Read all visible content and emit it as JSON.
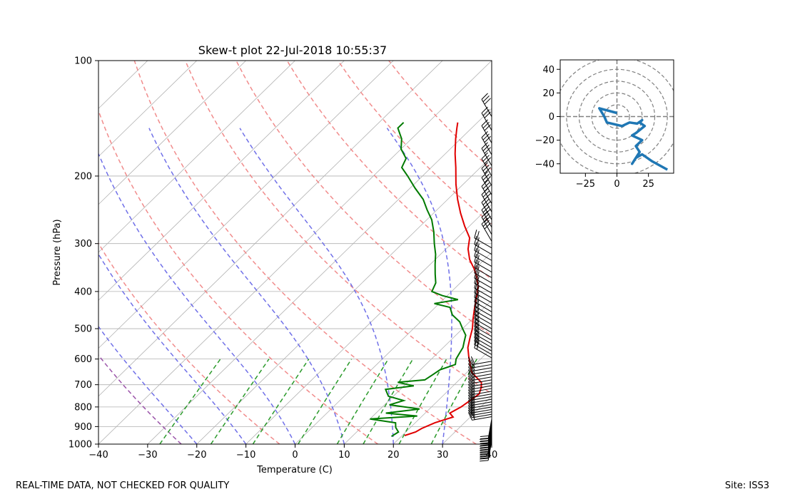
{
  "page": {
    "footer_left": "REAL-TIME DATA, NOT CHECKED FOR QUALITY",
    "footer_right": "Site: ISS3"
  },
  "chart_data": [
    {
      "type": "skew-t",
      "title": "Skew-t plot 22-Jul-2018 10:55:37",
      "xlabel": "Temperature (C)",
      "ylabel": "Pressure (hPa)",
      "xlim": [
        -40,
        40
      ],
      "ylim": [
        1000,
        100
      ],
      "y_scale": "log",
      "x_ticks": [
        -40,
        -30,
        -20,
        -10,
        0,
        10,
        20,
        30,
        40
      ],
      "x_tick_labels": [
        "−40",
        "−30",
        "−20",
        "−10",
        "0",
        "10",
        "20",
        "30",
        "40"
      ],
      "y_ticks": [
        100,
        200,
        300,
        400,
        500,
        600,
        700,
        800,
        900,
        1000
      ],
      "y_tick_labels": [
        "100",
        "200",
        "300",
        "400",
        "500",
        "600",
        "700",
        "800",
        "900",
        "1000"
      ],
      "grid": true,
      "isotherms_C": [
        -120,
        -110,
        -100,
        -90,
        -80,
        -70,
        -60,
        -50,
        -40,
        -30,
        -20,
        -10,
        0,
        10,
        20,
        30,
        40
      ],
      "dry_adiabats_theta_K": [
        230,
        250,
        270,
        290,
        310,
        330,
        350,
        370,
        390,
        410
      ],
      "moist_adiabats_start_C": [
        -20,
        -10,
        0,
        10,
        20,
        30,
        40
      ],
      "mixing_ratio_lines_g_kg": [
        0.4,
        1,
        2,
        4,
        7,
        10,
        16,
        24
      ],
      "special_dry_adiabat_theta_K": 250,
      "colors": {
        "temperature": "#e00000",
        "dewpoint": "#007a00",
        "dry_adiabat": "#f08080",
        "moist_adiabat": "#7070e8",
        "mixing_ratio": "#2a9a2a",
        "special": "#9040a0",
        "grid": "#b0b0b0"
      },
      "series": [
        {
          "name": "Temperature",
          "points": [
            [
              20.5,
              950
            ],
            [
              22,
              930
            ],
            [
              22.5,
              910
            ],
            [
              24,
              880
            ],
            [
              26.5,
              850
            ],
            [
              25,
              830
            ],
            [
              26,
              800
            ],
            [
              26.5,
              770
            ],
            [
              27,
              740
            ],
            [
              26,
              710
            ],
            [
              25,
              690
            ],
            [
              23,
              670
            ],
            [
              21,
              650
            ],
            [
              19,
              620
            ],
            [
              17,
              590
            ],
            [
              15,
              560
            ],
            [
              13.5,
              530
            ],
            [
              12,
              500
            ],
            [
              10,
              470
            ],
            [
              8,
              440
            ],
            [
              6,
              410
            ],
            [
              4.5,
              390
            ],
            [
              2.5,
              370
            ],
            [
              0,
              350
            ],
            [
              -3,
              330
            ],
            [
              -5.5,
              310
            ],
            [
              -7.5,
              290
            ],
            [
              -11,
              270
            ],
            [
              -14.5,
              250
            ],
            [
              -18,
              230
            ],
            [
              -21.5,
              210
            ],
            [
              -25,
              190
            ],
            [
              -28,
              175
            ],
            [
              -31,
              160
            ],
            [
              -33,
              150
            ],
            [
              -34,
              145
            ]
          ]
        },
        {
          "name": "Dewpoint",
          "points": [
            [
              18,
              955
            ],
            [
              18.5,
              930
            ],
            [
              17,
              905
            ],
            [
              16,
              880
            ],
            [
              10,
              860
            ],
            [
              19,
              845
            ],
            [
              12,
              830
            ],
            [
              18,
              810
            ],
            [
              11,
              790
            ],
            [
              13,
              770
            ],
            [
              9,
              750
            ],
            [
              8,
              735
            ],
            [
              7,
              720
            ],
            [
              12,
              705
            ],
            [
              8,
              690
            ],
            [
              13,
              680
            ],
            [
              13.5,
              660
            ],
            [
              14,
              640
            ],
            [
              16,
              620
            ],
            [
              15,
              600
            ],
            [
              14.5,
              580
            ],
            [
              14,
              560
            ],
            [
              13,
              540
            ],
            [
              12,
              520
            ],
            [
              10,
              500
            ],
            [
              8,
              480
            ],
            [
              5,
              460
            ],
            [
              3,
              440
            ],
            [
              -1,
              430
            ],
            [
              3,
              420
            ],
            [
              -1,
              410
            ],
            [
              -4,
              400
            ],
            [
              -5,
              380
            ],
            [
              -7,
              360
            ],
            [
              -9,
              340
            ],
            [
              -11,
              320
            ],
            [
              -13.5,
              300
            ],
            [
              -16,
              280
            ],
            [
              -19,
              260
            ],
            [
              -22,
              245
            ],
            [
              -25,
              230
            ],
            [
              -29,
              215
            ],
            [
              -33,
              200
            ],
            [
              -36,
              190
            ],
            [
              -37,
              180
            ],
            [
              -40,
              170
            ],
            [
              -42,
              160
            ],
            [
              -45,
              150
            ],
            [
              -45,
              145
            ]
          ]
        }
      ]
    },
    {
      "type": "hodograph",
      "xlim": [
        -45,
        45
      ],
      "ylim": [
        -48,
        48
      ],
      "x_ticks": [
        -25,
        0,
        25
      ],
      "x_tick_labels": [
        "−25",
        "0",
        "25"
      ],
      "y_ticks": [
        -40,
        -20,
        0,
        20,
        40
      ],
      "y_tick_labels": [
        "−40",
        "−20",
        "0",
        "20",
        "40"
      ],
      "rings": [
        10,
        20,
        30,
        40,
        50
      ],
      "line_color": "#1f77b4",
      "u": [
        40,
        28,
        20,
        15,
        12,
        18,
        15,
        20,
        12,
        15,
        22,
        18,
        20,
        16,
        10,
        4,
        -8,
        -10,
        -14,
        0
      ],
      "v": [
        -45,
        -38,
        -32,
        -35,
        -40,
        -30,
        -25,
        -20,
        -16,
        -14,
        -8,
        -5,
        -3,
        -6,
        -5,
        -8,
        -5,
        0,
        7,
        3
      ]
    }
  ]
}
